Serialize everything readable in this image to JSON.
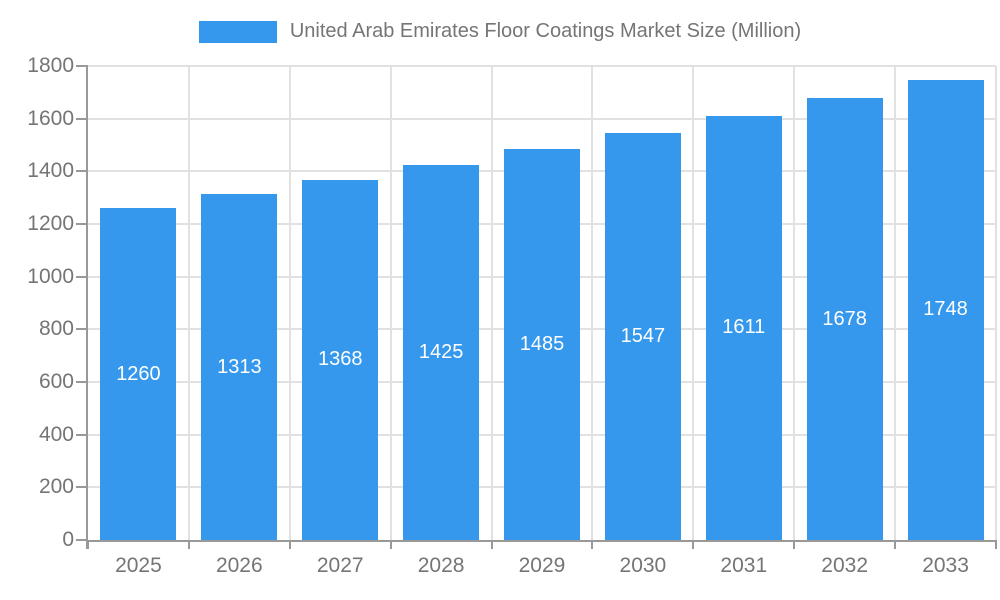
{
  "chart_data": {
    "type": "bar",
    "title": "",
    "legend": {
      "label": "United Arab Emirates Floor Coatings Market Size (Million)",
      "position": "top"
    },
    "categories": [
      "2025",
      "2026",
      "2027",
      "2028",
      "2029",
      "2030",
      "2031",
      "2032",
      "2033"
    ],
    "values": [
      1260,
      1313,
      1368,
      1425,
      1485,
      1547,
      1611,
      1678,
      1748
    ],
    "bar_value_labels": [
      "1260",
      "1313",
      "1368",
      "1425",
      "1485",
      "1547",
      "1611",
      "1678",
      "1748"
    ],
    "xlabel": "",
    "ylabel": "",
    "ylim": [
      0,
      1800
    ],
    "ytick_step": 200,
    "ytick_labels": [
      "0",
      "200",
      "400",
      "600",
      "800",
      "1000",
      "1200",
      "1400",
      "1600",
      "1800"
    ],
    "grid": true,
    "legend_position": "top-center",
    "colors": {
      "bar": "#3598EC",
      "bar_label_text": "#ffffff",
      "axis_text": "#757575",
      "grid_line": "#e1e1e1",
      "axis_line": "#999999",
      "background": "#ffffff"
    }
  }
}
